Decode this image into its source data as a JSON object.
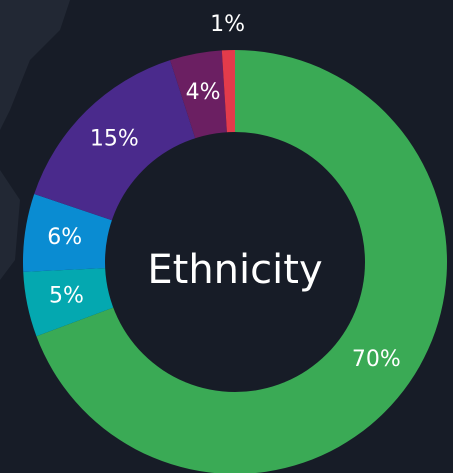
{
  "chart_data": {
    "type": "pie",
    "title": "Ethnicity",
    "values": [
      70,
      5,
      6,
      15,
      4,
      1
    ],
    "value_labels": [
      "70%",
      "5%",
      "6%",
      "15%",
      "4%",
      "1%"
    ],
    "colors": [
      "#3aaa55",
      "#04a8b0",
      "#0a8cd2",
      "#4a2a8c",
      "#6b1f62",
      "#e33b4b"
    ]
  }
}
